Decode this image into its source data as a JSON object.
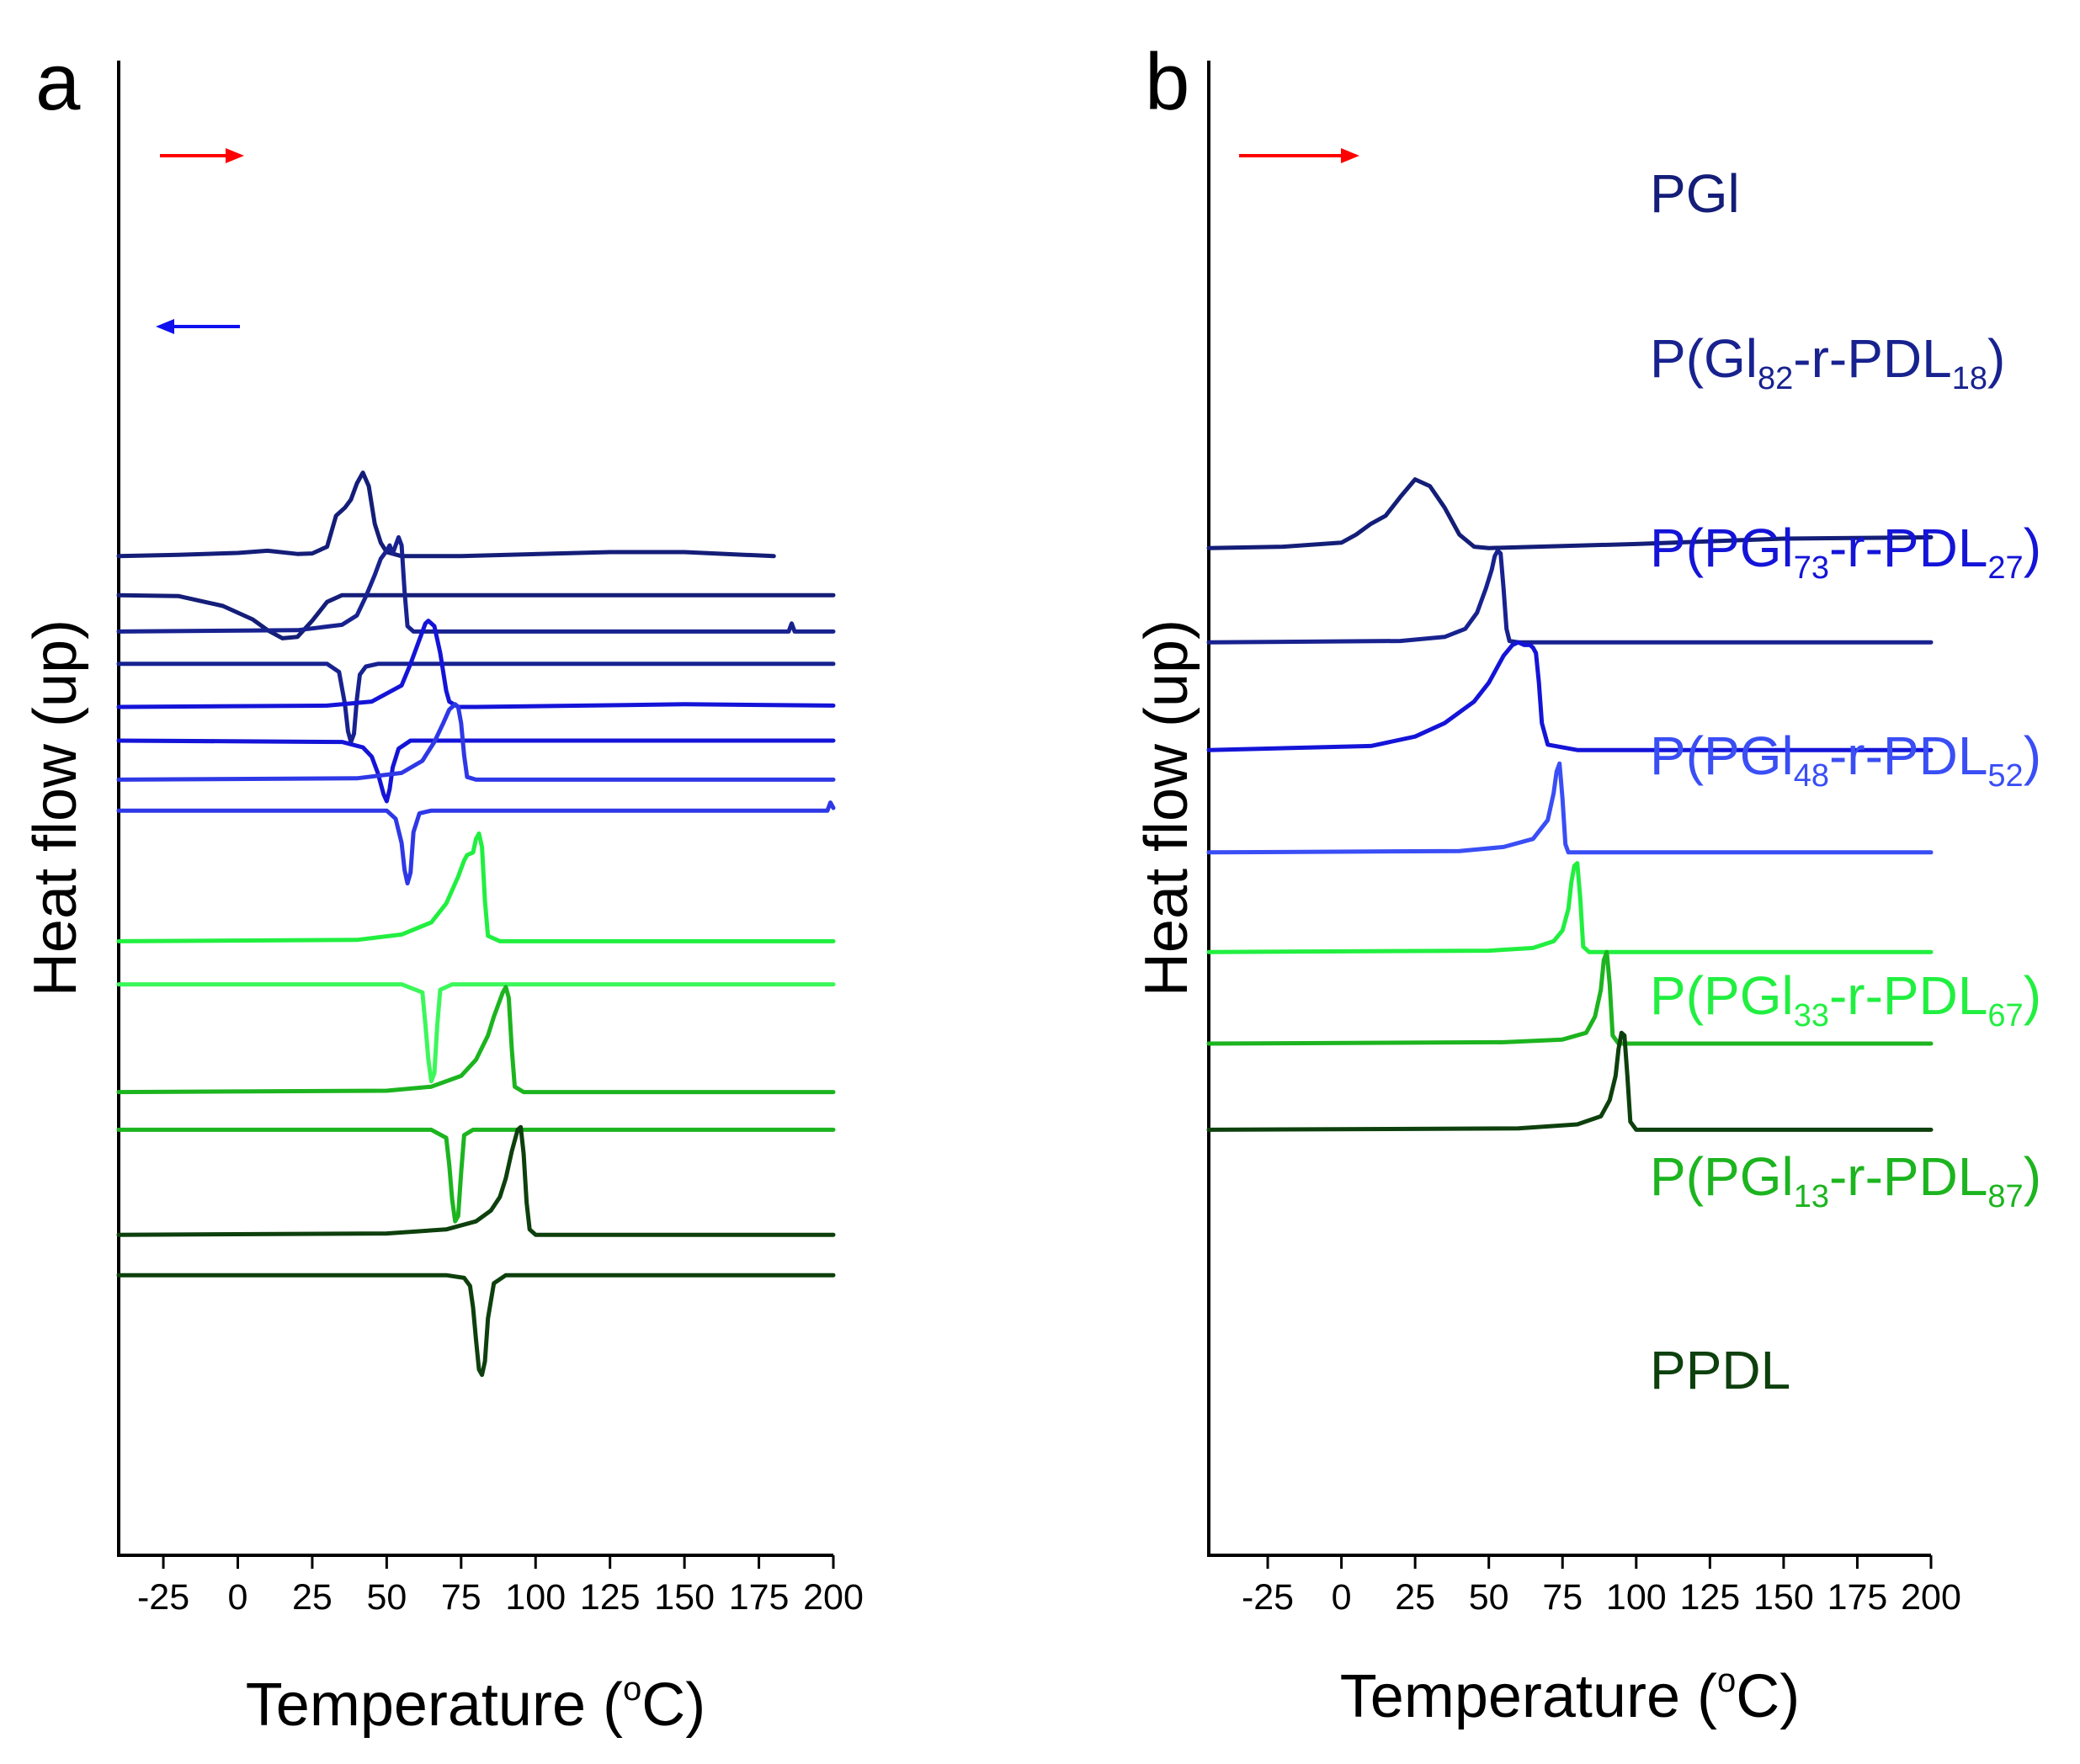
{
  "chart_data": [
    {
      "panel": "a",
      "type": "line",
      "xlabel_main": "Temperature (",
      "xlabel_unit_sup": "o",
      "xlabel_unit": "C)",
      "ylabel": "Heat flow (up)",
      "xlim": [
        -40,
        200
      ],
      "xticks": [
        -25,
        0,
        25,
        50,
        75,
        100,
        125,
        150,
        175,
        200
      ],
      "xtick_labels": [
        "-25",
        "0",
        "25",
        "50",
        "75",
        "100",
        "125",
        "150",
        "175",
        "200"
      ],
      "heating_arrow_color": "#ff0000",
      "cooling_arrow_color": "#1010ee",
      "series": [
        {
          "name": "PGl heating",
          "color": "#141e78",
          "offset": 10.6,
          "x": [
            -40,
            -20,
            0,
            10,
            20,
            25,
            30,
            33,
            36,
            38,
            40,
            42,
            44,
            46,
            48,
            50,
            55,
            75,
            125,
            150,
            170,
            180
          ],
          "y": [
            0,
            0.05,
            0.12,
            0.2,
            0.08,
            0.1,
            0.35,
            1.5,
            1.8,
            2.1,
            2.7,
            3.1,
            2.6,
            1.2,
            0.5,
            0.15,
            0,
            0,
            0.15,
            0.15,
            0.05,
            0
          ]
        },
        {
          "name": "PGl cooling",
          "color": "#141e78",
          "offset": 9.15,
          "x": [
            -40,
            -20,
            -5,
            5,
            10,
            15,
            20,
            25,
            30,
            35,
            40,
            200
          ],
          "y": [
            0,
            -0.03,
            -0.4,
            -0.9,
            -1.3,
            -1.6,
            -1.55,
            -0.95,
            -0.25,
            0,
            0,
            0
          ]
        },
        {
          "name": "P(Gl82-r-PDL18) heating",
          "color": "#18228f",
          "offset": 7.8,
          "x": [
            -40,
            20,
            35,
            40,
            43,
            46,
            48,
            50,
            51,
            52,
            53,
            54,
            55,
            56,
            57,
            59,
            65,
            185,
            186,
            187,
            188,
            200
          ],
          "y": [
            0,
            0.05,
            0.25,
            0.6,
            1.3,
            2.1,
            2.7,
            3.0,
            3.2,
            2.9,
            3.2,
            3.5,
            3.2,
            1.5,
            0.2,
            0,
            0,
            0,
            0.3,
            0,
            0,
            0
          ]
        },
        {
          "name": "P(Gl82-r-PDL18) cooling",
          "color": "#18228f",
          "offset": 6.6,
          "x": [
            -40,
            30,
            34,
            36,
            37,
            38,
            39,
            40,
            41,
            43,
            47,
            200
          ],
          "y": [
            0,
            0,
            -0.3,
            -1.5,
            -2.5,
            -2.9,
            -2.6,
            -1.3,
            -0.4,
            -0.1,
            0,
            0
          ]
        },
        {
          "name": "P(PGl73-r-PDL27) heating",
          "color": "#1414d8",
          "offset": 5.0,
          "x": [
            -40,
            30,
            45,
            55,
            58,
            61,
            63,
            64,
            66,
            68,
            70,
            71,
            74,
            80,
            150,
            200
          ],
          "y": [
            0,
            0.05,
            0.2,
            0.8,
            1.6,
            2.5,
            3.1,
            3.2,
            3.0,
            2.0,
            0.6,
            0.2,
            0,
            0,
            0.1,
            0.05
          ]
        },
        {
          "name": "P(PGl73-r-PDL27) cooling",
          "color": "#1414d8",
          "offset": 3.75,
          "x": [
            -40,
            35,
            42,
            45,
            47,
            49,
            50,
            51,
            52,
            54,
            58,
            200
          ],
          "y": [
            0,
            -0.05,
            -0.25,
            -0.6,
            -1.2,
            -2.0,
            -2.25,
            -1.8,
            -1.0,
            -0.3,
            0,
            0
          ]
        },
        {
          "name": "P(PGl48-r-PDL52) heating",
          "color": "#2e38e6",
          "offset": 2.3,
          "x": [
            -40,
            40,
            55,
            62,
            66,
            69,
            71,
            72,
            73,
            74,
            75,
            76,
            77,
            80,
            200
          ],
          "y": [
            0,
            0.05,
            0.25,
            0.7,
            1.4,
            2.1,
            2.6,
            2.7,
            2.8,
            2.7,
            2.1,
            0.9,
            0.1,
            0,
            0
          ]
        },
        {
          "name": "P(PGl48-r-PDL52) cooling",
          "color": "#2e38e6",
          "offset": 1.15,
          "x": [
            -40,
            50,
            53,
            55,
            56,
            57,
            58,
            59,
            61,
            65,
            198,
            199,
            200
          ],
          "y": [
            0,
            0,
            -0.3,
            -1.2,
            -2.2,
            -2.7,
            -2.3,
            -0.8,
            -0.1,
            0,
            0,
            0.3,
            0.1
          ]
        },
        {
          "name": "P(PGl33-r-PDL67) heating",
          "color": "#21ef40",
          "offset": -3.7,
          "x": [
            -40,
            40,
            55,
            65,
            70,
            74,
            76,
            77,
            79,
            80,
            81,
            82,
            83,
            84,
            88,
            200
          ],
          "y": [
            0,
            0.05,
            0.25,
            0.7,
            1.4,
            2.4,
            3.0,
            3.2,
            3.3,
            3.8,
            4.0,
            3.5,
            1.5,
            0.2,
            0,
            0
          ]
        },
        {
          "name": "P(PGl33-r-PDL67) cooling",
          "color": "#3cf75a",
          "offset": -5.3,
          "x": [
            -40,
            55,
            62,
            63,
            64,
            65,
            66,
            67,
            68,
            72,
            200
          ],
          "y": [
            0,
            0,
            -0.3,
            -1.5,
            -2.8,
            -3.6,
            -3.3,
            -1.5,
            -0.2,
            0,
            0
          ]
        },
        {
          "name": "P(PGl13-r-PDL87) heating",
          "color": "#1cb41f",
          "offset": -9.3,
          "x": [
            -40,
            50,
            65,
            75,
            80,
            84,
            86,
            88,
            89,
            90,
            91,
            92,
            93,
            96,
            200
          ],
          "y": [
            0,
            0.05,
            0.2,
            0.6,
            1.2,
            2.1,
            2.8,
            3.4,
            3.7,
            3.9,
            3.5,
            1.6,
            0.2,
            0,
            0
          ]
        },
        {
          "name": "P(PGl13-r-PDL87) cooling",
          "color": "#1cb41f",
          "offset": -10.7,
          "x": [
            -40,
            65,
            70,
            71,
            72,
            73,
            74,
            75,
            76,
            79,
            200
          ],
          "y": [
            0,
            0,
            -0.3,
            -1.3,
            -2.6,
            -3.4,
            -3.2,
            -1.6,
            -0.2,
            0,
            0
          ]
        },
        {
          "name": "PPDL heating",
          "color": "#0d400d",
          "offset": -14.6,
          "x": [
            -40,
            50,
            70,
            80,
            85,
            88,
            90,
            92,
            94,
            95,
            96,
            97,
            98,
            100,
            200
          ],
          "y": [
            0,
            0.05,
            0.2,
            0.5,
            0.9,
            1.4,
            2.1,
            3.1,
            3.9,
            4.0,
            3.0,
            1.2,
            0.2,
            0,
            0
          ]
        },
        {
          "name": "PPDL cooling",
          "color": "#0d400d",
          "offset": -16.1,
          "x": [
            -40,
            70,
            76,
            78,
            79,
            80,
            81,
            82,
            83,
            84,
            86,
            90,
            200
          ],
          "y": [
            0,
            0,
            -0.1,
            -0.4,
            -1.2,
            -2.4,
            -3.5,
            -3.7,
            -3.2,
            -1.6,
            -0.3,
            0,
            0
          ]
        }
      ]
    },
    {
      "panel": "b",
      "type": "line",
      "xlabel_main": "Temperature (",
      "xlabel_unit_sup": "o",
      "xlabel_unit": "C)",
      "ylabel": "Heat flow (up)",
      "xlim": [
        -45,
        200
      ],
      "xticks": [
        -25,
        0,
        25,
        50,
        75,
        100,
        125,
        150,
        175,
        200
      ],
      "xtick_labels": [
        "-25",
        "0",
        "25",
        "50",
        "75",
        "100",
        "125",
        "150",
        "175",
        "200"
      ],
      "heating_arrow_color": "#ff0000",
      "series": [
        {
          "name": "PGl",
          "color": "#141e78",
          "offset": 10.9,
          "label": {
            "pre": "PGl"
          },
          "x": [
            -45,
            -20,
            0,
            5,
            10,
            15,
            20,
            25,
            30,
            35,
            40,
            45,
            50,
            100,
            150,
            200
          ],
          "y": [
            0,
            0.05,
            0.2,
            0.5,
            0.9,
            1.2,
            1.9,
            2.55,
            2.3,
            1.5,
            0.5,
            0.05,
            0,
            0.15,
            0.35,
            0.4
          ]
        },
        {
          "name": "P(Gl82-r-PDL18)",
          "color": "#18228f",
          "offset": 7.4,
          "label": {
            "pre": "P(Gl",
            "sub1": "82",
            "mid": "-r-PDL",
            "sub2": "18",
            "post": ")"
          },
          "x": [
            -45,
            20,
            35,
            42,
            46,
            49,
            51,
            52,
            53,
            54,
            55,
            56,
            57,
            60,
            200
          ],
          "y": [
            0,
            0.05,
            0.2,
            0.5,
            1.1,
            2.0,
            2.7,
            3.2,
            3.4,
            3.3,
            2.0,
            0.5,
            0.05,
            0,
            0
          ]
        },
        {
          "name": "P(PGl73-r-PDL27)",
          "color": "#1414d8",
          "offset": 3.4,
          "label": {
            "pre": "P(PGl",
            "sub1": "73",
            "mid": "-r-PDL",
            "sub2": "27",
            "post": ")"
          },
          "x": [
            -45,
            10,
            25,
            35,
            45,
            50,
            55,
            58,
            60,
            62,
            64,
            65,
            66,
            67,
            68,
            70,
            80,
            200
          ],
          "y": [
            0,
            0.15,
            0.5,
            1.0,
            1.8,
            2.5,
            3.5,
            3.9,
            4.0,
            3.9,
            3.9,
            3.8,
            3.6,
            2.5,
            1.0,
            0.2,
            0,
            0
          ]
        },
        {
          "name": "P(PGl48-r-PDL52)",
          "color": "#3a4ef5",
          "offset": -0.4,
          "label": {
            "pre": "P(PGl",
            "sub1": "48",
            "mid": "-r-PDL",
            "sub2": "52",
            "post": ")"
          },
          "x": [
            -45,
            40,
            55,
            65,
            70,
            72,
            73,
            74,
            75,
            76,
            77,
            80,
            200
          ],
          "y": [
            0,
            0.05,
            0.2,
            0.5,
            1.2,
            2.2,
            3.0,
            3.3,
            2.0,
            0.3,
            0,
            0,
            0
          ]
        },
        {
          "name": "P(PGl33-r-PDL67)",
          "color": "#21ef40",
          "offset": -4.1,
          "label": {
            "pre": "P(PGl",
            "sub1": "33",
            "mid": "-r-PDL",
            "sub2": "67",
            "post": ")"
          },
          "x": [
            -45,
            50,
            65,
            72,
            75,
            77,
            78,
            79,
            80,
            81,
            82,
            84,
            200
          ],
          "y": [
            0,
            0.05,
            0.15,
            0.4,
            0.8,
            1.6,
            2.6,
            3.2,
            3.3,
            2.0,
            0.2,
            0,
            0
          ]
        },
        {
          "name": "P(PGl13-r-PDL87)",
          "color": "#1cb41f",
          "offset": -7.5,
          "label": {
            "pre": "P(PGl",
            "sub1": "13",
            "mid": "-r-PDL",
            "sub2": "87",
            "post": ")"
          },
          "x": [
            -45,
            55,
            75,
            83,
            86,
            88,
            89,
            90,
            91,
            92,
            94,
            200
          ],
          "y": [
            0,
            0.05,
            0.15,
            0.4,
            1.0,
            2.0,
            3.1,
            3.4,
            2.2,
            0.3,
            0,
            0
          ]
        },
        {
          "name": "PPDL",
          "color": "#0d400d",
          "offset": -10.7,
          "label": {
            "pre": "PPDL"
          },
          "x": [
            -45,
            60,
            80,
            88,
            91,
            93,
            94,
            95,
            96,
            97,
            98,
            100,
            200
          ],
          "y": [
            0,
            0.05,
            0.2,
            0.5,
            1.1,
            2.0,
            3.0,
            3.6,
            3.5,
            2.0,
            0.3,
            0,
            0
          ]
        }
      ]
    }
  ]
}
